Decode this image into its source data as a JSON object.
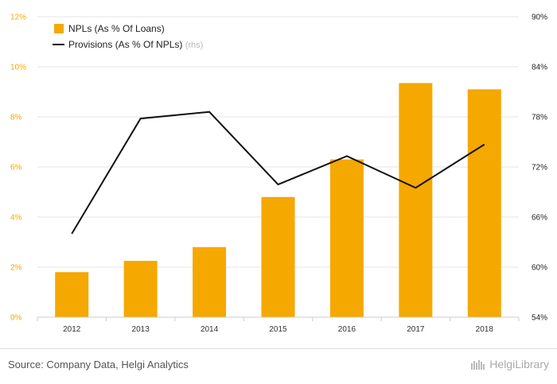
{
  "chart_data": {
    "type": "bar+line",
    "categories": [
      "2012",
      "2013",
      "2014",
      "2015",
      "2016",
      "2017",
      "2018"
    ],
    "series": [
      {
        "name": "NPLs (As % Of Loans)",
        "type": "bar",
        "axis": "left",
        "color": "#f5a800",
        "values": [
          1.8,
          2.25,
          2.8,
          4.8,
          6.3,
          9.35,
          9.1
        ]
      },
      {
        "name": "Provisions (As % Of NPLs)",
        "name_note": "(rhs)",
        "type": "line",
        "axis": "right",
        "color": "#111111",
        "values": [
          64.0,
          77.8,
          78.6,
          69.9,
          73.3,
          69.5,
          74.7
        ]
      }
    ],
    "y_left": {
      "ylim": [
        0,
        12
      ],
      "ticks": [
        0,
        2,
        4,
        6,
        8,
        10,
        12
      ],
      "tick_labels": [
        "0%",
        "2%",
        "4%",
        "6%",
        "8%",
        "10%",
        "12%"
      ]
    },
    "y_right": {
      "ylim": [
        54,
        90
      ],
      "ticks": [
        54,
        60,
        66,
        72,
        78,
        84,
        90
      ],
      "tick_labels": [
        "54%",
        "60%",
        "66%",
        "72%",
        "78%",
        "84%",
        "90%"
      ]
    },
    "legend_position": "top-left",
    "grid": "horizontal"
  },
  "footer": {
    "source": "Source: Company Data, Helgi Analytics",
    "brand": "HelgiLibrary"
  }
}
